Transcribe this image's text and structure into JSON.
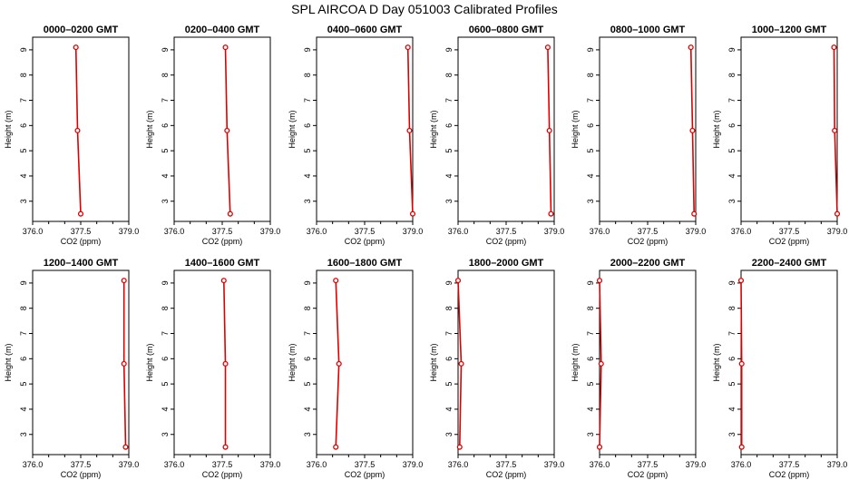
{
  "title": "SPL AIRCOA D  Day 051003  Calibrated Profiles",
  "colors": {
    "series": "#dd0000",
    "axis": "#000000"
  },
  "chart_data": [
    {
      "type": "line",
      "title": "0000–0200 GMT",
      "xlabel": "CO2 (ppm)",
      "ylabel": "Height (m)",
      "xlim": [
        376.0,
        379.0
      ],
      "ylim": [
        2.2,
        9.5
      ],
      "xticks": [
        "376.0",
        "377.5",
        "379.0"
      ],
      "yticks": [
        "3",
        "4",
        "5",
        "6",
        "7",
        "8",
        "9"
      ],
      "x": [
        377.35,
        377.4,
        377.5
      ],
      "y": [
        9.1,
        5.8,
        2.5
      ]
    },
    {
      "type": "line",
      "title": "0200–0400 GMT",
      "xlabel": "CO2 (ppm)",
      "ylabel": "Height (m)",
      "xlim": [
        376.0,
        379.0
      ],
      "ylim": [
        2.2,
        9.5
      ],
      "xticks": [
        "376.0",
        "377.5",
        "379.0"
      ],
      "yticks": [
        "3",
        "4",
        "5",
        "6",
        "7",
        "8",
        "9"
      ],
      "x": [
        377.6,
        377.65,
        377.75
      ],
      "y": [
        9.1,
        5.8,
        2.5
      ]
    },
    {
      "type": "line",
      "title": "0400–0600 GMT",
      "xlabel": "CO2 (ppm)",
      "ylabel": "Height (m)",
      "xlim": [
        376.0,
        379.0
      ],
      "ylim": [
        2.2,
        9.5
      ],
      "xticks": [
        "376.0",
        "377.5",
        "379.0"
      ],
      "yticks": [
        "3",
        "4",
        "5",
        "6",
        "7",
        "8",
        "9"
      ],
      "x": [
        378.85,
        378.9,
        379.0
      ],
      "y": [
        9.1,
        5.8,
        2.5
      ]
    },
    {
      "type": "line",
      "title": "0600–0800 GMT",
      "xlabel": "CO2 (ppm)",
      "ylabel": "Height (m)",
      "xlim": [
        376.0,
        379.0
      ],
      "ylim": [
        2.2,
        9.5
      ],
      "xticks": [
        "376.0",
        "377.5",
        "379.0"
      ],
      "yticks": [
        "3",
        "4",
        "5",
        "6",
        "7",
        "8",
        "9"
      ],
      "x": [
        378.8,
        378.85,
        378.9
      ],
      "y": [
        9.1,
        5.8,
        2.5
      ]
    },
    {
      "type": "line",
      "title": "0800–1000 GMT",
      "xlabel": "CO2 (ppm)",
      "ylabel": "Height (m)",
      "xlim": [
        376.0,
        379.0
      ],
      "ylim": [
        2.2,
        9.5
      ],
      "xticks": [
        "376.0",
        "377.5",
        "379.0"
      ],
      "yticks": [
        "3",
        "4",
        "5",
        "6",
        "7",
        "8",
        "9"
      ],
      "x": [
        378.85,
        378.9,
        378.95
      ],
      "y": [
        9.1,
        5.8,
        2.5
      ]
    },
    {
      "type": "line",
      "title": "1000–1200 GMT",
      "xlabel": "CO2 (ppm)",
      "ylabel": "Height (m)",
      "xlim": [
        376.0,
        379.0
      ],
      "ylim": [
        2.2,
        9.5
      ],
      "xticks": [
        "376.0",
        "377.5",
        "379.0"
      ],
      "yticks": [
        "3",
        "4",
        "5",
        "6",
        "7",
        "8",
        "9"
      ],
      "x": [
        378.9,
        378.92,
        379.0
      ],
      "y": [
        9.1,
        5.8,
        2.5
      ]
    },
    {
      "type": "line",
      "title": "1200–1400 GMT",
      "xlabel": "CO2 (ppm)",
      "ylabel": "Height (m)",
      "xlim": [
        376.0,
        379.0
      ],
      "ylim": [
        2.2,
        9.5
      ],
      "xticks": [
        "376.0",
        "377.5",
        "379.0"
      ],
      "yticks": [
        "3",
        "4",
        "5",
        "6",
        "7",
        "8",
        "9"
      ],
      "x": [
        378.85,
        378.85,
        378.9
      ],
      "y": [
        9.1,
        5.8,
        2.5
      ]
    },
    {
      "type": "line",
      "title": "1400–1600 GMT",
      "xlabel": "CO2 (ppm)",
      "ylabel": "Height (m)",
      "xlim": [
        376.0,
        379.0
      ],
      "ylim": [
        2.2,
        9.5
      ],
      "xticks": [
        "376.0",
        "377.5",
        "379.0"
      ],
      "yticks": [
        "3",
        "4",
        "5",
        "6",
        "7",
        "8",
        "9"
      ],
      "x": [
        377.55,
        377.6,
        377.6
      ],
      "y": [
        9.1,
        5.8,
        2.5
      ]
    },
    {
      "type": "line",
      "title": "1600–1800 GMT",
      "xlabel": "CO2 (ppm)",
      "ylabel": "Height (m)",
      "xlim": [
        376.0,
        379.0
      ],
      "ylim": [
        2.2,
        9.5
      ],
      "xticks": [
        "376.0",
        "377.5",
        "379.0"
      ],
      "yticks": [
        "3",
        "4",
        "5",
        "6",
        "7",
        "8",
        "9"
      ],
      "x": [
        376.6,
        376.7,
        376.6
      ],
      "y": [
        9.1,
        5.8,
        2.5
      ]
    },
    {
      "type": "line",
      "title": "1800–2000 GMT",
      "xlabel": "CO2 (ppm)",
      "ylabel": "Height (m)",
      "xlim": [
        376.0,
        379.0
      ],
      "ylim": [
        2.2,
        9.5
      ],
      "xticks": [
        "376.0",
        "377.5",
        "379.0"
      ],
      "yticks": [
        "3",
        "4",
        "5",
        "6",
        "7",
        "8",
        "9"
      ],
      "x": [
        376.0,
        376.1,
        376.05
      ],
      "y": [
        9.1,
        5.8,
        2.5
      ]
    },
    {
      "type": "line",
      "title": "2000–2200 GMT",
      "xlabel": "CO2 (ppm)",
      "ylabel": "Height (m)",
      "xlim": [
        376.0,
        379.0
      ],
      "ylim": [
        2.2,
        9.5
      ],
      "xticks": [
        "376.0",
        "377.5",
        "379.0"
      ],
      "yticks": [
        "3",
        "4",
        "5",
        "6",
        "7",
        "8",
        "9"
      ],
      "x": [
        376.0,
        376.05,
        376.0
      ],
      "y": [
        9.1,
        5.8,
        2.5
      ]
    },
    {
      "type": "line",
      "title": "2200–2400 GMT",
      "xlabel": "CO2 (ppm)",
      "ylabel": "Height (m)",
      "xlim": [
        376.0,
        379.0
      ],
      "ylim": [
        2.2,
        9.5
      ],
      "xticks": [
        "376.0",
        "377.5",
        "379.0"
      ],
      "yticks": [
        "3",
        "4",
        "5",
        "6",
        "7",
        "8",
        "9"
      ],
      "x": [
        376.0,
        376.02,
        376.02
      ],
      "y": [
        9.1,
        5.8,
        2.5
      ]
    }
  ]
}
